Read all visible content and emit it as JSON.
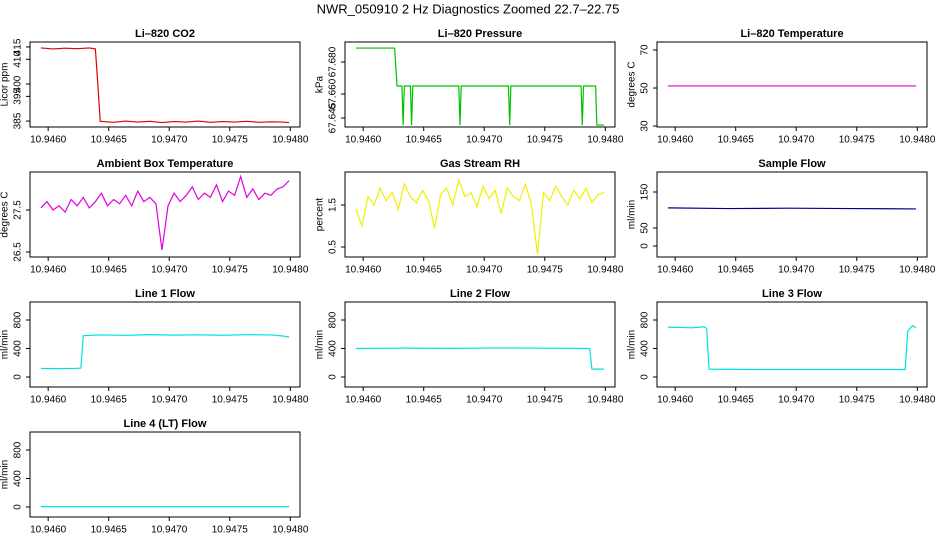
{
  "title": "NWR_050910  2 Hz Diagnostics Zoomed 22.7–22.75",
  "chart_data": [
    {
      "type": "line",
      "title": "Li–820 CO2",
      "ylabel": "Licor ppm",
      "color": "#e00000",
      "xlim": [
        10.94585,
        10.94808
      ],
      "xticks": [
        {
          "value": 10.946,
          "label": "10.9460"
        },
        {
          "value": 10.9465,
          "label": "10.9465"
        },
        {
          "value": 10.947,
          "label": "10.9470"
        },
        {
          "value": 10.9475,
          "label": "10.9475"
        },
        {
          "value": 10.948,
          "label": "10.9480"
        }
      ],
      "ylim": [
        382.6,
        417.0
      ],
      "yticks": [
        385,
        395,
        400,
        410,
        415
      ],
      "x": [
        10.94594,
        10.94604,
        10.94614,
        10.94624,
        10.94634,
        10.94639,
        10.94641,
        10.94643,
        10.94654,
        10.94664,
        10.94674,
        10.94684,
        10.94694,
        10.94704,
        10.94714,
        10.94724,
        10.94734,
        10.94744,
        10.94754,
        10.94764,
        10.94774,
        10.94784,
        10.94794,
        10.94799
      ],
      "values": [
        414.6,
        414.2,
        414.5,
        414.3,
        414.6,
        414.2,
        400.0,
        384.9,
        384.5,
        385.0,
        384.6,
        384.9,
        384.4,
        384.8,
        384.6,
        385.0,
        384.5,
        384.8,
        384.6,
        384.9,
        384.5,
        384.7,
        384.6,
        384.4
      ]
    },
    {
      "type": "line",
      "title": "Li–820 Pressure",
      "ylabel": "kPa",
      "color": "#00c000",
      "xlim": [
        10.94585,
        10.94808
      ],
      "xticks": [
        {
          "value": 10.946,
          "label": "10.9460"
        },
        {
          "value": 10.9465,
          "label": "10.9465"
        },
        {
          "value": 10.947,
          "label": "10.9470"
        },
        {
          "value": 10.9475,
          "label": "10.9475"
        },
        {
          "value": 10.948,
          "label": "10.9480"
        }
      ],
      "ylim": [
        67.6394,
        67.6925
      ],
      "yticks": [
        67.645,
        {
          "value": 67.66,
          "label": "67.660"
        },
        {
          "value": 67.68,
          "label": "67.680"
        }
      ],
      "x": [
        10.94594,
        10.94626,
        10.94628,
        10.94632,
        10.94633,
        10.94634,
        10.94639,
        10.9464,
        10.94641,
        10.94679,
        10.9468,
        10.94681,
        10.9472,
        10.94721,
        10.94722,
        10.9478,
        10.94781,
        10.94782,
        10.94792,
        10.94793,
        10.94799
      ],
      "values": [
        67.6887,
        67.6887,
        67.665,
        67.665,
        67.6406,
        67.665,
        67.665,
        67.6406,
        67.665,
        67.665,
        67.6406,
        67.665,
        67.665,
        67.6406,
        67.665,
        67.665,
        67.6406,
        67.665,
        67.665,
        67.6406,
        67.6406
      ]
    },
    {
      "type": "line",
      "title": "Li–820 Temperature",
      "ylabel": "degrees C",
      "color": "#e000e0",
      "xlim": [
        10.94585,
        10.94808
      ],
      "xticks": [
        {
          "value": 10.946,
          "label": "10.9460"
        },
        {
          "value": 10.9465,
          "label": "10.9465"
        },
        {
          "value": 10.947,
          "label": "10.9470"
        },
        {
          "value": 10.9475,
          "label": "10.9475"
        },
        {
          "value": 10.948,
          "label": "10.9480"
        }
      ],
      "ylim": [
        29.5,
        74.2
      ],
      "yticks": [
        30,
        50,
        70
      ],
      "x": [
        10.94594,
        10.94694,
        10.94799
      ],
      "values": [
        51.1,
        51.1,
        51.1
      ]
    },
    {
      "type": "line",
      "title": "Ambient Box Temperature",
      "ylabel": "degrees C",
      "color": "#e000e0",
      "xlim": [
        10.94585,
        10.94808
      ],
      "xticks": [
        {
          "value": 10.946,
          "label": "10.9460"
        },
        {
          "value": 10.9465,
          "label": "10.9465"
        },
        {
          "value": 10.947,
          "label": "10.9470"
        },
        {
          "value": 10.9475,
          "label": "10.9475"
        },
        {
          "value": 10.948,
          "label": "10.9480"
        }
      ],
      "ylim": [
        26.381,
        28.405
      ],
      "yticks": [
        26.5,
        27.5
      ],
      "x": [
        10.94594,
        10.94599,
        10.94604,
        10.94609,
        10.94614,
        10.94619,
        10.94624,
        10.94629,
        10.94634,
        10.94639,
        10.94644,
        10.94649,
        10.94654,
        10.94659,
        10.94664,
        10.94669,
        10.94674,
        10.94679,
        10.94684,
        10.94689,
        10.94694,
        10.94699,
        10.94704,
        10.94709,
        10.94714,
        10.94719,
        10.94724,
        10.94729,
        10.94734,
        10.94739,
        10.94744,
        10.94749,
        10.94754,
        10.94759,
        10.94764,
        10.94769,
        10.94774,
        10.94779,
        10.94784,
        10.94789,
        10.94794,
        10.94799
      ],
      "values": [
        27.55,
        27.7,
        27.5,
        27.6,
        27.45,
        27.75,
        27.6,
        27.8,
        27.55,
        27.7,
        27.9,
        27.6,
        27.75,
        27.65,
        27.85,
        27.6,
        27.95,
        27.7,
        27.8,
        27.65,
        26.55,
        27.6,
        27.9,
        27.7,
        27.85,
        28.05,
        27.75,
        27.9,
        27.8,
        28.1,
        27.7,
        27.95,
        27.85,
        28.3,
        27.8,
        28.0,
        27.75,
        27.9,
        27.85,
        28.0,
        28.05,
        28.2
      ]
    },
    {
      "type": "line",
      "title": "Gas Stream RH",
      "ylabel": "percent",
      "color": "#f0f000",
      "xlim": [
        10.94585,
        10.94808
      ],
      "xticks": [
        {
          "value": 10.946,
          "label": "10.9460"
        },
        {
          "value": 10.9465,
          "label": "10.9465"
        },
        {
          "value": 10.947,
          "label": "10.9470"
        },
        {
          "value": 10.9475,
          "label": "10.9475"
        },
        {
          "value": 10.948,
          "label": "10.9480"
        }
      ],
      "ylim": [
        0.262,
        2.286
      ],
      "yticks": [
        0.5,
        1.5
      ],
      "x": [
        10.94594,
        10.94599,
        10.94604,
        10.94609,
        10.94614,
        10.94619,
        10.94624,
        10.94629,
        10.94634,
        10.94639,
        10.94644,
        10.94649,
        10.94654,
        10.94659,
        10.94664,
        10.94669,
        10.94674,
        10.94679,
        10.94684,
        10.94689,
        10.94694,
        10.94699,
        10.94704,
        10.94709,
        10.94714,
        10.94719,
        10.94724,
        10.94729,
        10.94734,
        10.94739,
        10.94744,
        10.94749,
        10.94754,
        10.94759,
        10.94764,
        10.94769,
        10.94774,
        10.94779,
        10.94784,
        10.94789,
        10.94794,
        10.94799
      ],
      "values": [
        1.4,
        1.0,
        1.7,
        1.5,
        1.9,
        1.6,
        1.8,
        1.4,
        2.0,
        1.7,
        1.55,
        1.85,
        1.6,
        0.95,
        1.75,
        1.9,
        1.5,
        2.1,
        1.7,
        1.8,
        1.45,
        1.95,
        1.65,
        1.85,
        1.3,
        1.9,
        1.7,
        1.6,
        2.0,
        1.5,
        0.33,
        1.8,
        1.6,
        1.95,
        1.7,
        1.5,
        1.85,
        1.65,
        1.9,
        1.55,
        1.75,
        1.8
      ]
    },
    {
      "type": "line",
      "title": "Sample Flow",
      "ylabel": "ml/min",
      "color": "#000090",
      "xlim": [
        10.94585,
        10.94808
      ],
      "xticks": [
        {
          "value": 10.946,
          "label": "10.9460"
        },
        {
          "value": 10.9465,
          "label": "10.9465"
        },
        {
          "value": 10.947,
          "label": "10.9470"
        },
        {
          "value": 10.9475,
          "label": "10.9475"
        },
        {
          "value": 10.948,
          "label": "10.9480"
        }
      ],
      "ylim": [
        -30.6,
        205.6
      ],
      "yticks": [
        0,
        50,
        150
      ],
      "x": [
        10.94594,
        10.94644,
        10.94694,
        10.94744,
        10.94799
      ],
      "values": [
        106,
        104,
        105,
        104,
        103
      ]
    },
    {
      "type": "line",
      "title": "Line 1 Flow",
      "ylabel": "ml/min",
      "color": "#00e0e0",
      "xlim": [
        10.94585,
        10.94808
      ],
      "xticks": [
        {
          "value": 10.946,
          "label": "10.9460"
        },
        {
          "value": 10.9465,
          "label": "10.9465"
        },
        {
          "value": 10.947,
          "label": "10.9470"
        },
        {
          "value": 10.9475,
          "label": "10.9475"
        },
        {
          "value": 10.948,
          "label": "10.9480"
        }
      ],
      "ylim": [
        -140.4,
        1052.6
      ],
      "yticks": [
        0,
        400,
        800
      ],
      "x": [
        10.94594,
        10.94609,
        10.94624,
        10.94627,
        10.94629,
        10.94644,
        10.94664,
        10.94684,
        10.94704,
        10.94724,
        10.94744,
        10.94764,
        10.94784,
        10.94794,
        10.94799
      ],
      "values": [
        120,
        118,
        122,
        125,
        580,
        590,
        585,
        595,
        588,
        592,
        586,
        594,
        590,
        575,
        560
      ]
    },
    {
      "type": "line",
      "title": "Line 2 Flow",
      "ylabel": "ml/min",
      "color": "#00e0e0",
      "xlim": [
        10.94585,
        10.94808
      ],
      "xticks": [
        {
          "value": 10.946,
          "label": "10.9460"
        },
        {
          "value": 10.9465,
          "label": "10.9465"
        },
        {
          "value": 10.947,
          "label": "10.9470"
        },
        {
          "value": 10.9475,
          "label": "10.9475"
        },
        {
          "value": 10.948,
          "label": "10.9480"
        }
      ],
      "ylim": [
        -140.4,
        1052.6
      ],
      "yticks": [
        0,
        400,
        800
      ],
      "x": [
        10.94594,
        10.94634,
        10.94674,
        10.94714,
        10.94754,
        10.94787,
        10.94789,
        10.94799
      ],
      "values": [
        400,
        405,
        402,
        408,
        404,
        400,
        110,
        110
      ]
    },
    {
      "type": "line",
      "title": "Line 3 Flow",
      "ylabel": "ml/min",
      "color": "#00e0e0",
      "xlim": [
        10.94585,
        10.94808
      ],
      "xticks": [
        {
          "value": 10.946,
          "label": "10.9460"
        },
        {
          "value": 10.9465,
          "label": "10.9465"
        },
        {
          "value": 10.947,
          "label": "10.9470"
        },
        {
          "value": 10.9475,
          "label": "10.9475"
        },
        {
          "value": 10.948,
          "label": "10.9480"
        }
      ],
      "ylim": [
        -140.4,
        1052.6
      ],
      "yticks": [
        0,
        400,
        800
      ],
      "x": [
        10.94594,
        10.94614,
        10.94624,
        10.94626,
        10.94628,
        10.94664,
        10.94714,
        10.94764,
        10.9479,
        10.94792,
        10.94796,
        10.94799
      ],
      "values": [
        700,
        690,
        705,
        680,
        110,
        105,
        105,
        105,
        105,
        640,
        720,
        690
      ]
    },
    {
      "type": "line",
      "title": "Line 4 (LT) Flow",
      "ylabel": "ml/min",
      "color": "#00e0e0",
      "xlim": [
        10.94585,
        10.94808
      ],
      "xticks": [
        {
          "value": 10.946,
          "label": "10.9460"
        },
        {
          "value": 10.9465,
          "label": "10.9465"
        },
        {
          "value": 10.947,
          "label": "10.9470"
        },
        {
          "value": 10.9475,
          "label": "10.9475"
        },
        {
          "value": 10.948,
          "label": "10.9480"
        }
      ],
      "ylim": [
        -140.4,
        1052.6
      ],
      "yticks": [
        0,
        400,
        800
      ],
      "x": [
        10.94594,
        10.94694,
        10.94799
      ],
      "values": [
        5,
        5,
        5
      ]
    }
  ]
}
